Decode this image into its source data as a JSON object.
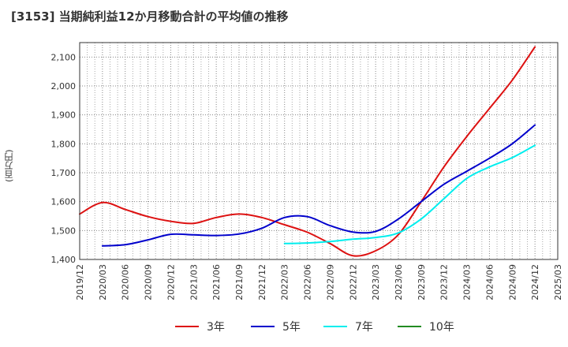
{
  "chart_data": {
    "type": "line",
    "title": "[3153]  当期純利益12か月移動合計の平均値の推移",
    "ylabel": "(百万円)",
    "xlabel": "",
    "ylim": [
      1400,
      2150
    ],
    "yticks": [
      1400,
      1500,
      1600,
      1700,
      1800,
      1900,
      2000,
      2100
    ],
    "ytick_labels": [
      "1,400",
      "1,500",
      "1,600",
      "1,700",
      "1,800",
      "1,900",
      "2,000",
      "2,100"
    ],
    "x_categories": [
      "2019/12",
      "2020/03",
      "2020/06",
      "2020/09",
      "2020/12",
      "2021/03",
      "2021/06",
      "2021/09",
      "2021/12",
      "2022/03",
      "2022/06",
      "2022/09",
      "2022/12",
      "2023/03",
      "2023/06",
      "2023/09",
      "2023/12",
      "2024/03",
      "2024/06",
      "2024/09",
      "2024/12",
      "2025/03"
    ],
    "grid": true,
    "legend_position": "bottom",
    "series": [
      {
        "name": "3年",
        "color": "#dd1111",
        "points": [
          [
            "2019/12",
            1557
          ],
          [
            "2020/03",
            1597
          ],
          [
            "2020/06",
            1573
          ],
          [
            "2020/09",
            1548
          ],
          [
            "2020/12",
            1532
          ],
          [
            "2021/03",
            1525
          ],
          [
            "2021/06",
            1545
          ],
          [
            "2021/09",
            1557
          ],
          [
            "2021/12",
            1545
          ],
          [
            "2022/03",
            1520
          ],
          [
            "2022/06",
            1494
          ],
          [
            "2022/09",
            1455
          ],
          [
            "2022/12",
            1413
          ],
          [
            "2023/03",
            1430
          ],
          [
            "2023/06",
            1486
          ],
          [
            "2023/09",
            1600
          ],
          [
            "2023/12",
            1720
          ],
          [
            "2024/03",
            1825
          ],
          [
            "2024/06",
            1922
          ],
          [
            "2024/09",
            2020
          ],
          [
            "2024/12",
            2135
          ]
        ]
      },
      {
        "name": "5年",
        "color": "#0000cc",
        "points": [
          [
            "2020/03",
            1447
          ],
          [
            "2020/06",
            1451
          ],
          [
            "2020/09",
            1468
          ],
          [
            "2020/12",
            1487
          ],
          [
            "2021/03",
            1485
          ],
          [
            "2021/06",
            1483
          ],
          [
            "2021/09",
            1488
          ],
          [
            "2021/12",
            1508
          ],
          [
            "2022/03",
            1545
          ],
          [
            "2022/06",
            1548
          ],
          [
            "2022/09",
            1517
          ],
          [
            "2022/12",
            1495
          ],
          [
            "2023/03",
            1497
          ],
          [
            "2023/06",
            1540
          ],
          [
            "2023/09",
            1600
          ],
          [
            "2023/12",
            1660
          ],
          [
            "2024/03",
            1705
          ],
          [
            "2024/06",
            1750
          ],
          [
            "2024/09",
            1800
          ],
          [
            "2024/12",
            1865
          ]
        ]
      },
      {
        "name": "7年",
        "color": "#00eeee",
        "points": [
          [
            "2022/03",
            1455
          ],
          [
            "2022/06",
            1457
          ],
          [
            "2022/09",
            1462
          ],
          [
            "2022/12",
            1470
          ],
          [
            "2023/03",
            1476
          ],
          [
            "2023/06",
            1492
          ],
          [
            "2023/09",
            1540
          ],
          [
            "2023/12",
            1610
          ],
          [
            "2024/03",
            1680
          ],
          [
            "2024/06",
            1720
          ],
          [
            "2024/09",
            1752
          ],
          [
            "2024/12",
            1795
          ]
        ]
      },
      {
        "name": "10年",
        "color": "#228b22",
        "points": []
      }
    ]
  }
}
